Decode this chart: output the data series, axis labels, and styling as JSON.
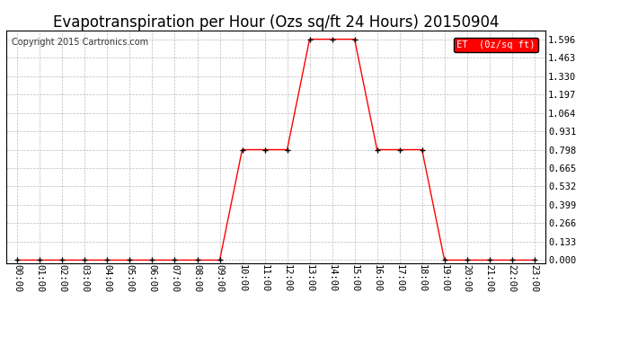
{
  "title": "Evapotranspiration per Hour (Ozs sq/ft 24 Hours) 20150904",
  "copyright": "Copyright 2015 Cartronics.com",
  "legend_label": "ET  (0z/sq ft)",
  "line_color": "#ff0000",
  "marker_color": "#000000",
  "background_color": "#ffffff",
  "grid_color": "#bbbbbb",
  "hours": [
    "00:00",
    "01:00",
    "02:00",
    "03:00",
    "04:00",
    "05:00",
    "06:00",
    "07:00",
    "08:00",
    "09:00",
    "10:00",
    "11:00",
    "12:00",
    "13:00",
    "14:00",
    "15:00",
    "16:00",
    "17:00",
    "18:00",
    "19:00",
    "20:00",
    "21:00",
    "22:00",
    "23:00"
  ],
  "values": [
    0.0,
    0.0,
    0.0,
    0.0,
    0.0,
    0.0,
    0.0,
    0.0,
    0.0,
    0.0,
    0.798,
    0.798,
    0.798,
    1.596,
    1.596,
    1.596,
    0.798,
    0.798,
    0.798,
    0.0,
    0.0,
    0.0,
    0.0,
    0.0
  ],
  "yticks": [
    0.0,
    0.133,
    0.266,
    0.399,
    0.532,
    0.665,
    0.798,
    0.931,
    1.064,
    1.197,
    1.33,
    1.463,
    1.596
  ],
  "ylim_min": -0.02,
  "ylim_max": 1.66,
  "legend_bg": "#ff0000",
  "legend_text_color": "#ffffff",
  "title_fontsize": 12,
  "copyright_fontsize": 7,
  "tick_fontsize": 7.5,
  "marker_size": 4
}
